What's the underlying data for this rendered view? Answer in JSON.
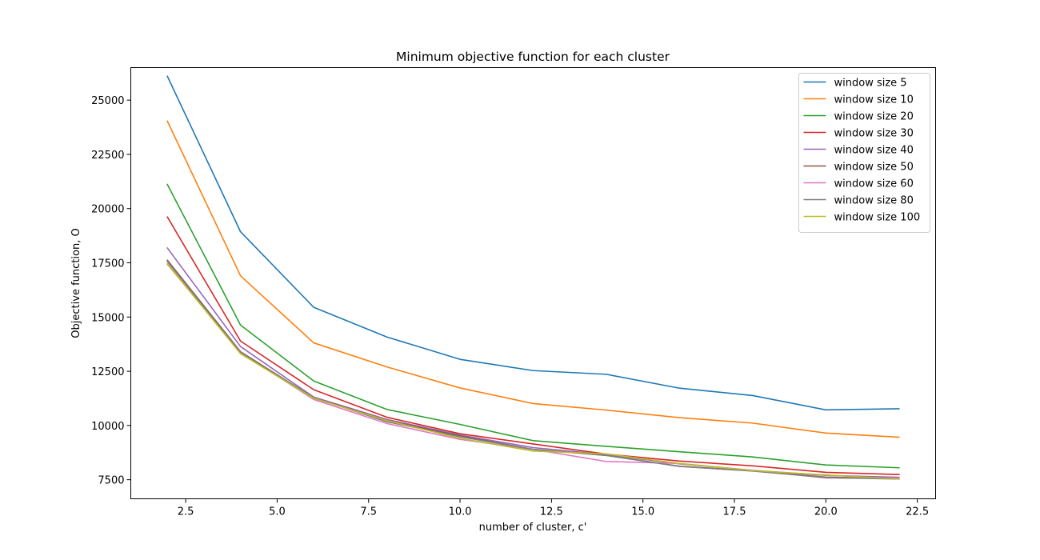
{
  "chart_data": {
    "type": "line",
    "title": "Minimum objective function for each cluster",
    "xlabel": "number of cluster, c'",
    "ylabel": "Objective function, O",
    "xlim": [
      1.0,
      23.0
    ],
    "ylim": [
      6620,
      26500
    ],
    "xticks": [
      2.5,
      5.0,
      7.5,
      10.0,
      12.5,
      15.0,
      17.5,
      20.0,
      22.5
    ],
    "xtick_labels": [
      "2.5",
      "5.0",
      "7.5",
      "10.0",
      "12.5",
      "15.0",
      "17.5",
      "20.0",
      "22.5"
    ],
    "yticks": [
      7500,
      10000,
      12500,
      15000,
      17500,
      20000,
      22500,
      25000
    ],
    "ytick_labels": [
      "7500",
      "10000",
      "12500",
      "15000",
      "17500",
      "20000",
      "22500",
      "25000"
    ],
    "grid": false,
    "legend_position": "top-right",
    "x": [
      2,
      4,
      6,
      8,
      10,
      12,
      14,
      16,
      18,
      20,
      22
    ],
    "series": [
      {
        "name": "window size 5",
        "color": "#1f77b4",
        "values": [
          26100,
          18930,
          15450,
          14080,
          13050,
          12530,
          12360,
          11720,
          11380,
          10720,
          10770
        ]
      },
      {
        "name": "window size 10",
        "color": "#ff7f0e",
        "values": [
          24030,
          16900,
          13810,
          12700,
          11730,
          11010,
          10710,
          10360,
          10110,
          9650,
          9460
        ]
      },
      {
        "name": "window size 20",
        "color": "#2ca02c",
        "values": [
          21110,
          14630,
          12050,
          10740,
          10050,
          9300,
          9040,
          8790,
          8550,
          8180,
          8050
        ]
      },
      {
        "name": "window size 30",
        "color": "#d62728",
        "values": [
          19610,
          13890,
          11650,
          10380,
          9620,
          9150,
          8680,
          8360,
          8140,
          7840,
          7740
        ]
      },
      {
        "name": "window size 40",
        "color": "#9467bd",
        "values": [
          18180,
          13640,
          11310,
          10280,
          9560,
          8980,
          8660,
          8230,
          7930,
          7700,
          7610
        ]
      },
      {
        "name": "window size 50",
        "color": "#8c564b",
        "values": [
          17620,
          13400,
          11280,
          10230,
          9520,
          8900,
          8620,
          8120,
          7910,
          7620,
          7560
        ]
      },
      {
        "name": "window size 60",
        "color": "#e377c2",
        "values": [
          17430,
          13370,
          11200,
          10090,
          9360,
          8900,
          8340,
          8250,
          7930,
          7580,
          7570
        ]
      },
      {
        "name": "window size 80",
        "color": "#7f7f7f",
        "values": [
          17560,
          13360,
          11290,
          10170,
          9480,
          8900,
          8620,
          8110,
          7900,
          7600,
          7530
        ]
      },
      {
        "name": "window size 100",
        "color": "#bcbd22",
        "values": [
          17460,
          13310,
          11250,
          10230,
          9410,
          8820,
          8690,
          8250,
          7920,
          7720,
          7530
        ]
      }
    ]
  }
}
